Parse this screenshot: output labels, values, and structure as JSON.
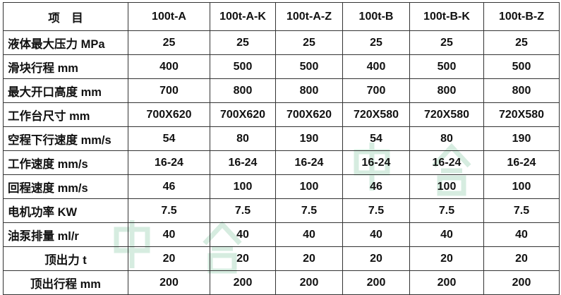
{
  "header": {
    "item_label": "项　目",
    "models": [
      "100t-A",
      "100t-A-K",
      "100t-A-Z",
      "100t-B",
      "100t-B-K",
      "100t-B-Z"
    ]
  },
  "rows": [
    {
      "label": "液体最大压力 MPa",
      "values": [
        "25",
        "25",
        "25",
        "25",
        "25",
        "25"
      ]
    },
    {
      "label": "滑块行程 mm",
      "values": [
        "400",
        "500",
        "500",
        "400",
        "500",
        "500"
      ]
    },
    {
      "label": "最大开口高度 mm",
      "values": [
        "700",
        "800",
        "800",
        "700",
        "800",
        "800"
      ]
    },
    {
      "label": "工作台尺寸 mm",
      "values": [
        "700X620",
        "700X620",
        "700X620",
        "720X580",
        "720X580",
        "720X580"
      ]
    },
    {
      "label": "空程下行速度 mm/s",
      "values": [
        "54",
        "80",
        "190",
        "54",
        "80",
        "190"
      ]
    },
    {
      "label": "工作速度 mm/s",
      "values": [
        "16-24",
        "16-24",
        "16-24",
        "16-24",
        "16-24",
        "16-24"
      ]
    },
    {
      "label": "回程速度 mm/s",
      "values": [
        "46",
        "100",
        "100",
        "46",
        "100",
        "100"
      ]
    },
    {
      "label": "电机功率 KW",
      "values": [
        "7.5",
        "7.5",
        "7.5",
        "7.5",
        "7.5",
        "7.5"
      ]
    },
    {
      "label": "油泵排量 ml/r",
      "values": [
        "40",
        "40",
        "40",
        "40",
        "40",
        "40"
      ]
    },
    {
      "label": "顶出力 t",
      "values": [
        "20",
        "20",
        "20",
        "20",
        "20",
        "20"
      ]
    },
    {
      "label": "顶出行程 mm",
      "values": [
        "200",
        "200",
        "200",
        "200",
        "200",
        "200"
      ]
    }
  ],
  "watermark": {
    "text": [
      "中",
      "合"
    ],
    "color": "#cfe8d8"
  }
}
